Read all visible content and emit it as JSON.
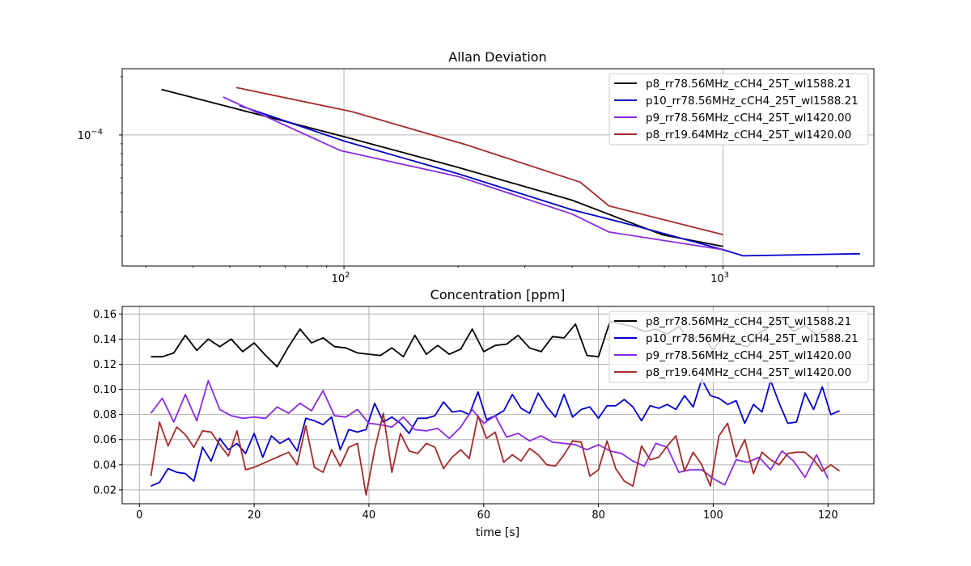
{
  "chart_data": [
    {
      "type": "line",
      "title": "Allan Deviation",
      "xlabel": "",
      "ylabel": "",
      "xscale": "log",
      "yscale": "log",
      "xlim": [
        26,
        2500
      ],
      "ylim": [
        2.1e-05,
        0.00022
      ],
      "grid": true,
      "legend": "top-right",
      "xticks": [
        {
          "value": 100,
          "mantissa": "10",
          "exp": "2"
        },
        {
          "value": 1000,
          "mantissa": "10",
          "exp": "3"
        }
      ],
      "yticks": [
        {
          "value": 0.0001,
          "mantissa": "10",
          "exp": "−4"
        }
      ],
      "series": [
        {
          "name": "p8_rr78.56MHz_cCH4_25T_wl1588.21",
          "color": "#000000",
          "x": [
            33,
            100,
            200,
            400,
            690,
            1000
          ],
          "y": [
            0.000172,
            9.8e-05,
            6.8e-05,
            4.6e-05,
            3.05e-05,
            2.65e-05
          ]
        },
        {
          "name": "p10_rr78.56MHz_cCH4_25T_wl1588.21",
          "color": "#0000cc",
          "x": [
            53,
            100,
            200,
            400,
            600,
            1000,
            1130,
            2300
          ],
          "y": [
            0.000142,
            9.3e-05,
            6.3e-05,
            4.1e-05,
            3.35e-05,
            2.55e-05,
            2.37e-05,
            2.43e-05
          ]
        },
        {
          "name": "p9_rr78.56MHz_cCH4_25T_wl1420.00",
          "color": "#8a2be2",
          "x": [
            48,
            98,
            200,
            400,
            500,
            1000
          ],
          "y": [
            0.000157,
            8.3e-05,
            6.1e-05,
            3.9e-05,
            3.15e-05,
            2.55e-05
          ]
        },
        {
          "name": "p8_rr19.64MHz_cCH4_25T_wl1420.00",
          "color": "#a52a2a",
          "x": [
            52,
            105,
            210,
            420,
            500,
            1000
          ],
          "y": [
            0.000176,
            0.000132,
            8.9e-05,
            5.7e-05,
            4.3e-05,
            3.05e-05
          ]
        }
      ]
    },
    {
      "type": "line",
      "title": "Concentration [ppm]",
      "xlabel": "time [s]",
      "ylabel": "",
      "xlim": [
        -3,
        128
      ],
      "ylim": [
        0.009,
        0.166
      ],
      "grid": true,
      "legend": "top-right",
      "xticks": [
        0,
        20,
        40,
        60,
        80,
        100,
        120
      ],
      "yticks": [
        0.02,
        0.04,
        0.06,
        0.08,
        0.1,
        0.12,
        0.14,
        0.16
      ],
      "ytick_labels": [
        "0.02",
        "0.04",
        "0.06",
        "0.08",
        "0.10",
        "0.12",
        "0.14",
        "0.16"
      ],
      "series": [
        {
          "name": "p8_rr78.56MHz_cCH4_25T_wl1588.21",
          "color": "#000000",
          "x": [
            2,
            4,
            6,
            8,
            10,
            12,
            14,
            16,
            18,
            20,
            22,
            24,
            26,
            28,
            30,
            32,
            34,
            36,
            38,
            40,
            42,
            44,
            46,
            48,
            50,
            52,
            54,
            56,
            58,
            60,
            62,
            64,
            66,
            68,
            70,
            72,
            74,
            76,
            78,
            80,
            82,
            84,
            86,
            88,
            90,
            92,
            94,
            96,
            98,
            100,
            102,
            104,
            106,
            108,
            110,
            112,
            114,
            116,
            118,
            120
          ],
          "y": [
            0.126,
            0.126,
            0.129,
            0.143,
            0.131,
            0.14,
            0.134,
            0.14,
            0.13,
            0.137,
            0.127,
            0.118,
            0.134,
            0.148,
            0.137,
            0.141,
            0.134,
            0.133,
            0.129,
            0.128,
            0.127,
            0.133,
            0.126,
            0.143,
            0.128,
            0.135,
            0.128,
            0.132,
            0.148,
            0.13,
            0.135,
            0.136,
            0.143,
            0.133,
            0.13,
            0.142,
            0.141,
            0.152,
            0.127,
            0.126,
            0.154,
            0.152,
            0.15,
            0.146,
            0.148,
            0.144,
            0.15,
            0.139,
            0.144,
            0.131,
            0.145,
            0.136,
            0.134,
            0.145,
            0.15,
            0.157,
            0.146,
            0.151,
            0.143,
            0.148
          ]
        },
        {
          "name": "p10_rr78.56MHz_cCH4_25T_wl1588.21",
          "color": "#0000cc",
          "x": [
            2,
            3.5,
            5,
            6.5,
            8,
            9.5,
            11,
            12.5,
            14,
            15.5,
            17,
            18.5,
            20,
            21.5,
            23,
            24.5,
            26,
            27.5,
            29,
            30.5,
            32,
            33.5,
            35,
            36.5,
            38,
            39.5,
            41,
            42.5,
            44,
            45.5,
            47,
            48.5,
            50,
            51.5,
            53,
            54.5,
            56,
            57.5,
            59,
            60.5,
            62,
            63.5,
            65,
            66.5,
            68,
            69.5,
            71,
            72.5,
            74,
            75.5,
            77,
            78.5,
            80,
            81.5,
            83,
            84.5,
            86,
            87.5,
            89,
            90.5,
            92,
            93.5,
            95,
            96.5,
            98,
            99.5,
            101,
            102.5,
            104,
            105.5,
            107,
            108.5,
            110,
            111.5,
            113,
            114.5,
            116,
            117.5,
            119,
            120.5,
            122
          ],
          "y": [
            0.023,
            0.026,
            0.037,
            0.034,
            0.033,
            0.027,
            0.054,
            0.043,
            0.061,
            0.052,
            0.057,
            0.049,
            0.065,
            0.046,
            0.063,
            0.057,
            0.061,
            0.051,
            0.077,
            0.075,
            0.072,
            0.078,
            0.052,
            0.068,
            0.066,
            0.068,
            0.089,
            0.074,
            0.078,
            0.073,
            0.065,
            0.077,
            0.077,
            0.079,
            0.09,
            0.082,
            0.083,
            0.08,
            0.098,
            0.076,
            0.079,
            0.083,
            0.096,
            0.085,
            0.081,
            0.097,
            0.086,
            0.078,
            0.096,
            0.078,
            0.084,
            0.086,
            0.077,
            0.087,
            0.087,
            0.092,
            0.086,
            0.075,
            0.087,
            0.085,
            0.088,
            0.084,
            0.095,
            0.086,
            0.108,
            0.095,
            0.093,
            0.088,
            0.091,
            0.073,
            0.088,
            0.082,
            0.107,
            0.089,
            0.073,
            0.074,
            0.097,
            0.084,
            0.102,
            0.08,
            0.083
          ]
        },
        {
          "name": "p9_rr78.56MHz_cCH4_25T_wl1420.00",
          "color": "#8a2be2",
          "x": [
            2,
            4,
            6,
            8,
            10,
            12,
            14,
            16,
            18,
            20,
            22,
            24,
            26,
            28,
            30,
            32,
            34,
            36,
            38,
            40,
            42,
            44,
            46,
            48,
            50,
            52,
            54,
            56,
            58,
            60,
            62,
            64,
            66,
            68,
            70,
            72,
            74,
            76,
            78,
            80,
            82,
            84,
            86,
            88,
            90,
            92,
            94,
            96,
            98,
            100,
            102,
            104,
            106,
            108,
            110,
            112,
            114,
            116,
            118,
            120
          ],
          "y": [
            0.081,
            0.093,
            0.074,
            0.096,
            0.075,
            0.107,
            0.084,
            0.079,
            0.077,
            0.078,
            0.077,
            0.086,
            0.081,
            0.089,
            0.083,
            0.099,
            0.079,
            0.078,
            0.084,
            0.073,
            0.072,
            0.07,
            0.078,
            0.068,
            0.067,
            0.069,
            0.061,
            0.07,
            0.084,
            0.073,
            0.079,
            0.062,
            0.065,
            0.059,
            0.063,
            0.058,
            0.057,
            0.056,
            0.052,
            0.056,
            0.051,
            0.049,
            0.043,
            0.039,
            0.057,
            0.054,
            0.034,
            0.036,
            0.036,
            0.029,
            0.024,
            0.044,
            0.042,
            0.046,
            0.036,
            0.051,
            0.043,
            0.03,
            0.048,
            0.029
          ]
        },
        {
          "name": "p8_rr19.64MHz_cCH4_25T_wl1420.00",
          "color": "#a52a2a",
          "x": [
            2,
            3.5,
            5,
            6.5,
            8,
            9.5,
            11,
            12.5,
            14,
            15.5,
            17,
            18.5,
            20,
            21.5,
            23,
            24.5,
            26,
            27.5,
            29,
            30.5,
            32,
            33.5,
            35,
            36.5,
            38,
            39.5,
            41,
            42.5,
            44,
            45.5,
            47,
            48.5,
            50,
            51.5,
            53,
            54.5,
            56,
            57.5,
            59,
            60.5,
            62,
            63.5,
            65,
            66.5,
            68,
            69.5,
            71,
            72.5,
            74,
            75.5,
            77,
            78.5,
            80,
            81.5,
            83,
            84.5,
            86,
            87.5,
            89,
            90.5,
            92,
            93.5,
            95,
            96.5,
            98,
            99.5,
            101,
            102.5,
            104,
            105.5,
            107,
            108.5,
            110,
            111.5,
            113,
            114.5,
            116,
            117.5,
            119,
            120.5,
            122
          ],
          "y": [
            0.031,
            0.074,
            0.055,
            0.07,
            0.064,
            0.054,
            0.067,
            0.066,
            0.056,
            0.047,
            0.067,
            0.036,
            0.038,
            0.041,
            0.044,
            0.047,
            0.05,
            0.04,
            0.071,
            0.038,
            0.034,
            0.052,
            0.039,
            0.054,
            0.057,
            0.016,
            0.052,
            0.081,
            0.034,
            0.065,
            0.051,
            0.049,
            0.057,
            0.054,
            0.037,
            0.046,
            0.052,
            0.045,
            0.079,
            0.061,
            0.066,
            0.042,
            0.048,
            0.043,
            0.053,
            0.048,
            0.04,
            0.039,
            0.048,
            0.059,
            0.058,
            0.031,
            0.036,
            0.059,
            0.037,
            0.027,
            0.023,
            0.055,
            0.044,
            0.046,
            0.055,
            0.063,
            0.035,
            0.05,
            0.04,
            0.023,
            0.063,
            0.073,
            0.046,
            0.06,
            0.033,
            0.05,
            0.044,
            0.04,
            0.049,
            0.05,
            0.05,
            0.044,
            0.035,
            0.04,
            0.035
          ]
        }
      ]
    }
  ]
}
